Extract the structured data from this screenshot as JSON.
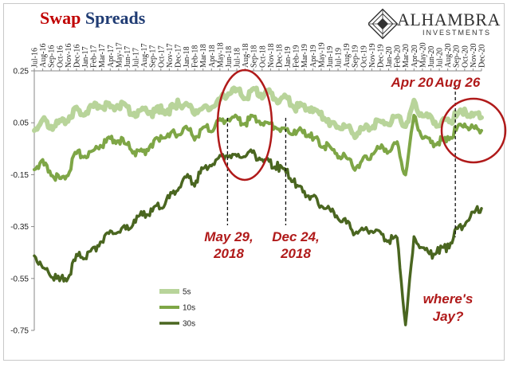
{
  "header": {
    "title_word1": "Swap",
    "title_word2": "Spreads"
  },
  "brand": {
    "name": "ALHAMBRA",
    "subtitle": "INVESTMENTS"
  },
  "chart_data": {
    "type": "line",
    "title": "Swap Spreads",
    "ylim": [
      -0.75,
      0.25
    ],
    "yticks": [
      0.25,
      0.05,
      -0.15,
      -0.35,
      -0.55,
      -0.75
    ],
    "ytick_labels": [
      "0.25",
      "0.05",
      "-0.15",
      "-0.35",
      "-0.55",
      "-0.75"
    ],
    "x_tick_labels": [
      "Jul-16",
      "Aug-16",
      "Sep-16",
      "Oct-16",
      "Nov-16",
      "Dec-16",
      "Jan-17",
      "Feb-17",
      "Mar-17",
      "Apr-17",
      "May-17",
      "Jun-17",
      "Jul-17",
      "Aug-17",
      "Sep-17",
      "Oct-17",
      "Nov-17",
      "Dec-17",
      "Jan-18",
      "Feb-18",
      "Mar-18",
      "Apr-18",
      "May-18",
      "Jun-18",
      "Jul-18",
      "Aug-18",
      "Sep-18",
      "Oct-18",
      "Nov-18",
      "Dec-18",
      "Jan-19",
      "Feb-19",
      "Mar-19",
      "Apr-19",
      "May-19",
      "Jun-19",
      "Jul-19",
      "Aug-19",
      "Sep-19",
      "Oct-19",
      "Nov-19",
      "Dec-19",
      "Jan-20",
      "Feb-20",
      "Mar-20",
      "Apr-20",
      "May-20",
      "Jun-20",
      "Jul-20",
      "Aug-20",
      "Sep-20",
      "Oct-20",
      "Nov-20",
      "Dec-20"
    ],
    "grid": false,
    "legend": "bottom-left",
    "series": [
      {
        "name": "5s",
        "color": "#b8d49a",
        "values": [
          0.02,
          0.06,
          0.04,
          0.05,
          0.07,
          0.1,
          0.09,
          0.11,
          0.12,
          0.11,
          0.12,
          0.1,
          0.09,
          0.1,
          0.09,
          0.1,
          0.1,
          0.12,
          0.12,
          0.1,
          0.1,
          0.11,
          0.13,
          0.17,
          0.17,
          0.15,
          0.17,
          0.16,
          0.16,
          0.14,
          0.14,
          0.11,
          0.11,
          0.1,
          0.08,
          0.05,
          0.04,
          0.03,
          0.01,
          0.02,
          0.04,
          0.05,
          0.05,
          0.07,
          0.04,
          0.12,
          0.08,
          0.06,
          0.05,
          0.05,
          0.08,
          0.09,
          0.08,
          0.07
        ]
      },
      {
        "name": "10s",
        "color": "#7ea646",
        "values": [
          -0.12,
          -0.11,
          -0.14,
          -0.17,
          -0.14,
          -0.07,
          -0.07,
          -0.06,
          -0.03,
          -0.02,
          -0.01,
          -0.04,
          -0.06,
          -0.06,
          -0.03,
          -0.01,
          0.0,
          0.01,
          0.02,
          0.0,
          0.02,
          0.03,
          0.05,
          0.07,
          0.06,
          0.05,
          0.07,
          0.05,
          0.04,
          0.03,
          0.02,
          0.01,
          0.02,
          -0.01,
          -0.03,
          -0.05,
          -0.07,
          -0.09,
          -0.12,
          -0.1,
          -0.07,
          -0.05,
          -0.05,
          -0.04,
          -0.15,
          0.07,
          0.0,
          -0.03,
          -0.02,
          -0.02,
          0.03,
          0.04,
          0.03,
          0.02
        ]
      },
      {
        "name": "30s",
        "color": "#4a6620",
        "values": [
          -0.45,
          -0.51,
          -0.53,
          -0.56,
          -0.54,
          -0.47,
          -0.46,
          -0.44,
          -0.4,
          -0.38,
          -0.37,
          -0.36,
          -0.33,
          -0.3,
          -0.29,
          -0.27,
          -0.24,
          -0.2,
          -0.16,
          -0.18,
          -0.13,
          -0.11,
          -0.09,
          -0.07,
          -0.08,
          -0.07,
          -0.07,
          -0.09,
          -0.11,
          -0.12,
          -0.14,
          -0.19,
          -0.22,
          -0.24,
          -0.27,
          -0.29,
          -0.31,
          -0.34,
          -0.37,
          -0.37,
          -0.36,
          -0.38,
          -0.4,
          -0.4,
          -0.72,
          -0.4,
          -0.43,
          -0.46,
          -0.44,
          -0.43,
          -0.37,
          -0.34,
          -0.3,
          -0.28
        ]
      }
    ],
    "annotations": [
      {
        "text_lines": [
          "May 29,",
          "2018"
        ],
        "x_index": 22.9
      },
      {
        "text_lines": [
          "Dec 24,",
          "2018"
        ],
        "x_index": 29.8
      },
      {
        "text_lines": [
          "Apr 20"
        ],
        "x_index": 45.6
      },
      {
        "text_lines": [
          "Aug 26"
        ],
        "x_index": 49.9
      },
      {
        "text_lines": [
          "where's",
          "Jay?"
        ],
        "x_index": 48.5
      }
    ]
  }
}
